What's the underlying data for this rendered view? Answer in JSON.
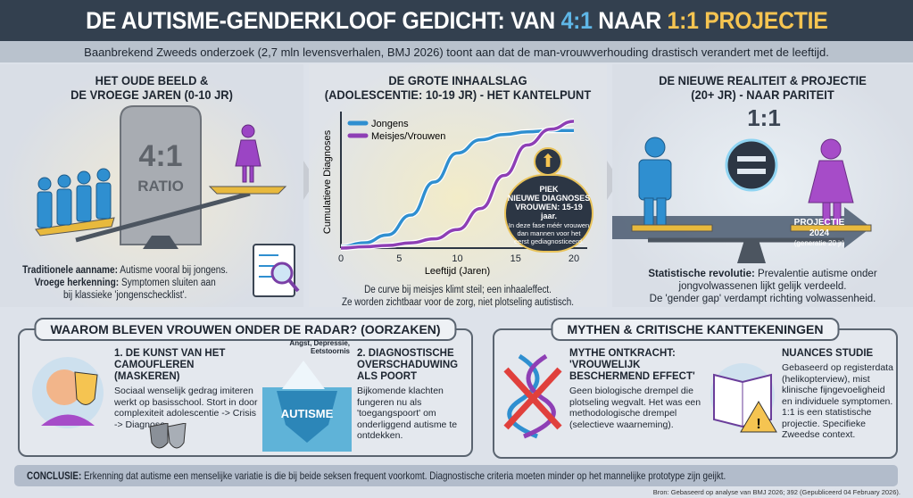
{
  "header": {
    "title_part1": "DE AUTISME-GENDERKLOOF GEDICHT: VAN ",
    "title_ratio_old": "4:1",
    "title_part2": " NAAR ",
    "title_ratio_new": "1:1 PROJECTIE",
    "subtitle": "Baanbrekend Zweeds onderzoek (2,7 mln levensverhalen, BMJ 2026) toont aan dat de man-vrouwverhouding drastisch verandert met de leeftijd."
  },
  "colors": {
    "header_bg": "#33404f",
    "boys": "#2f8fd0",
    "girls": "#8e3fb5",
    "gold": "#f5c451"
  },
  "panel1": {
    "title_line1": "HET OUDE BEELD &",
    "title_line2": "DE VROEGE JAREN (0-10 JR)",
    "stone_ratio": "4:1",
    "stone_label": "RATIO",
    "text1_bold": "Traditionele aanname:",
    "text1": " Autisme vooral bij jongens.",
    "text2_bold": "Vroege herkenning:",
    "text2": " Symptomen sluiten aan",
    "text3": "bij klassieke 'jongenschecklist'."
  },
  "panel2": {
    "title_line1": "DE GROTE INHAALSLAG",
    "title_line2": "(ADOLESCENTIE: 10-19 JR) - HET KANTELPUNT",
    "callout_title1": "PIEK",
    "callout_title2": "NIEUWE DIAGNOSES",
    "callout_title3": "VROUWEN: 15-19 jaar.",
    "callout_text1": "In deze fase méér vrouwen",
    "callout_text2": "dan mannen voor het",
    "callout_text3": "eerst gediagnosticeerd.",
    "caption1": "De curve bij meisjes klimt steil; een inhaaleffect.",
    "caption2": "Ze worden zichtbaar voor de zorg, niet plotseling autistisch."
  },
  "chart_data": {
    "type": "line",
    "xlabel": "Leeftijd (Jaren)",
    "ylabel": "Cumulatieve Diagnoses",
    "xlim": [
      0,
      20
    ],
    "ylim": [
      0,
      100
    ],
    "xticks": [
      "0",
      "5",
      "10",
      "15",
      "20"
    ],
    "legend": "top-left",
    "grid": false,
    "x": [
      0,
      2,
      4,
      6,
      8,
      10,
      12,
      14,
      16,
      18,
      20
    ],
    "series": [
      {
        "name": "Jongens",
        "color": "#2f8fd0",
        "values": [
          1,
          4,
          10,
          25,
          50,
          72,
          82,
          86,
          88,
          89,
          89
        ]
      },
      {
        "name": "Meisjes/Vrouwen",
        "color": "#8e3fb5",
        "values": [
          0,
          1,
          2,
          4,
          7,
          14,
          30,
          55,
          78,
          90,
          96
        ]
      }
    ]
  },
  "panel3": {
    "title_line1": "DE NIEUWE REALITEIT & PROJECTIE",
    "title_line2": "(20+ JR) - NAAR PARITEIT",
    "ratio": "1:1",
    "arrow_label": "PROJECTIE 2024",
    "arrow_sub": "(generatie 20 jr)",
    "text1_bold": "Statistische revolutie:",
    "text1": " Prevalentie autisme onder",
    "text2": "jongvolwassenen lijkt gelijk verdeeld.",
    "text3": "De 'gender gap' verdampt richting volwassenheid."
  },
  "causes": {
    "title": "WAAROM BLEVEN VROUWEN ONDER DE RADAR? (OORZAKEN)",
    "c1_title": "1. DE KUNST VAN HET CAMOUFLEREN (MASKEREN)",
    "c1_text": "Sociaal wenselijk gedrag imiteren werkt op basisschool. Stort in door complexiteit adolescentie -> Crisis -> Diagnose.",
    "iceberg_top": "Angst, Depressie, Eetstoornis",
    "iceberg_label": "AUTISME",
    "c2_title": "2. DIAGNOSTISCHE OVERSCHADUWING ALS POORT",
    "c2_text": "Bijkomende klachten fungeren nu als 'toegangspoort' om onderliggend autisme te ontdekken."
  },
  "myths": {
    "title": "MYTHEN & CRITISCHE KANTTEKENINGEN",
    "m1_title": "MYTHE ONTKRACHT: 'VROUWELIJK BESCHERMEND EFFECT'",
    "m1_text": "Geen biologische drempel die plotseling wegvalt. Het was een methodologische drempel (selectieve waarneming).",
    "m2_title": "NUANCES STUDIE",
    "m2_text": "Gebaseerd op registerdata (helikopterview), mist klinische fijngevoeligheid en individuele symptomen. 1:1 is een statistische projectie. Specifieke Zweedse context."
  },
  "conclusion": {
    "label": "CONCLUSIE:",
    "text": " Erkenning dat autisme een menselijke variatie is die bij beide seksen frequent voorkomt. Diagnostische criteria moeten minder op het mannelijke prototype zijn geijkt."
  },
  "source": "Bron: Gebaseerd op analyse van BMJ 2026; 392 (Gepubliceerd 04 February 2026)."
}
